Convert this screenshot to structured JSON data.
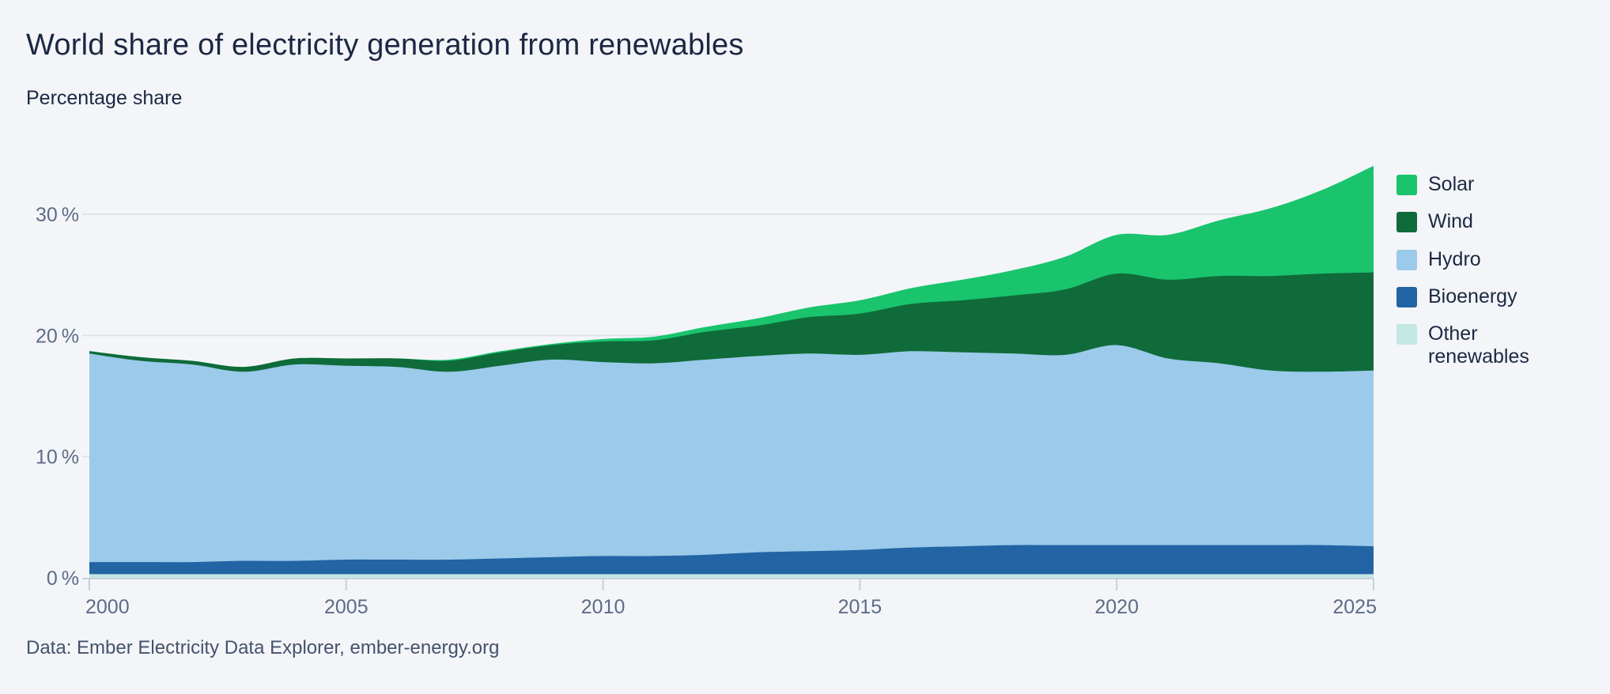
{
  "header": {
    "title": "World share of electricity generation from renewables",
    "subtitle": "Percentage share"
  },
  "footer": {
    "source": "Data: Ember Electricity Data Explorer, ember-energy.org"
  },
  "legend": {
    "items": [
      {
        "label": "Solar",
        "color": "#19c46d"
      },
      {
        "label": "Wind",
        "color": "#0f6b3a"
      },
      {
        "label": "Hydro",
        "color": "#9bcaea"
      },
      {
        "label": "Bioenergy",
        "color": "#2264a4"
      },
      {
        "label": "Other renewables",
        "color": "#c3e7e3"
      }
    ]
  },
  "chart_data": {
    "type": "area",
    "stacked": true,
    "title": "World share of electricity generation from renewables",
    "subtitle": "Percentage share",
    "xlabel": "",
    "ylabel": "Percentage share",
    "grid": "horizontal",
    "legend_position": "right",
    "xlim": [
      2000,
      2025
    ],
    "ylim": [
      0,
      36
    ],
    "x": [
      2000,
      2001,
      2002,
      2003,
      2004,
      2005,
      2006,
      2007,
      2008,
      2009,
      2010,
      2011,
      2012,
      2013,
      2014,
      2015,
      2016,
      2017,
      2018,
      2019,
      2020,
      2021,
      2022,
      2023,
      2024,
      2025
    ],
    "x_ticks": [
      2000,
      2005,
      2010,
      2015,
      2020,
      2025
    ],
    "y_ticks": [
      {
        "value": 0,
        "label": "0 %"
      },
      {
        "value": 10,
        "label": "10 %"
      },
      {
        "value": 20,
        "label": "20 %"
      },
      {
        "value": 30,
        "label": "30 %"
      }
    ],
    "series": [
      {
        "name": "Other renewables",
        "color": "#c3e7e3",
        "values": [
          0.3,
          0.3,
          0.3,
          0.3,
          0.3,
          0.3,
          0.3,
          0.3,
          0.3,
          0.3,
          0.3,
          0.3,
          0.3,
          0.3,
          0.3,
          0.3,
          0.3,
          0.3,
          0.3,
          0.3,
          0.3,
          0.3,
          0.3,
          0.3,
          0.3,
          0.3
        ]
      },
      {
        "name": "Bioenergy",
        "color": "#2264a4",
        "values": [
          1.0,
          1.0,
          1.0,
          1.1,
          1.1,
          1.2,
          1.2,
          1.2,
          1.3,
          1.4,
          1.5,
          1.5,
          1.6,
          1.8,
          1.9,
          2.0,
          2.2,
          2.3,
          2.4,
          2.4,
          2.4,
          2.4,
          2.4,
          2.4,
          2.4,
          2.3
        ]
      },
      {
        "name": "Hydro",
        "color": "#9bcaea",
        "values": [
          17.2,
          16.6,
          16.3,
          15.6,
          16.2,
          16.0,
          15.9,
          15.5,
          15.9,
          16.3,
          16.0,
          15.9,
          16.1,
          16.2,
          16.3,
          16.1,
          16.2,
          16.0,
          15.8,
          15.7,
          16.5,
          15.4,
          15.0,
          14.4,
          14.3,
          14.5
        ]
      },
      {
        "name": "Wind",
        "color": "#0f6b3a",
        "values": [
          0.2,
          0.3,
          0.3,
          0.4,
          0.5,
          0.6,
          0.7,
          0.9,
          1.1,
          1.2,
          1.7,
          1.9,
          2.3,
          2.5,
          3.0,
          3.4,
          3.9,
          4.3,
          4.8,
          5.4,
          5.9,
          6.5,
          7.2,
          7.8,
          8.1,
          8.1
        ]
      },
      {
        "name": "Solar",
        "color": "#19c46d",
        "values": [
          0.0,
          0.0,
          0.0,
          0.0,
          0.0,
          0.0,
          0.0,
          0.1,
          0.1,
          0.1,
          0.2,
          0.3,
          0.4,
          0.6,
          0.8,
          1.1,
          1.3,
          1.7,
          2.1,
          2.7,
          3.2,
          3.7,
          4.6,
          5.6,
          6.9,
          8.8
        ]
      }
    ]
  }
}
